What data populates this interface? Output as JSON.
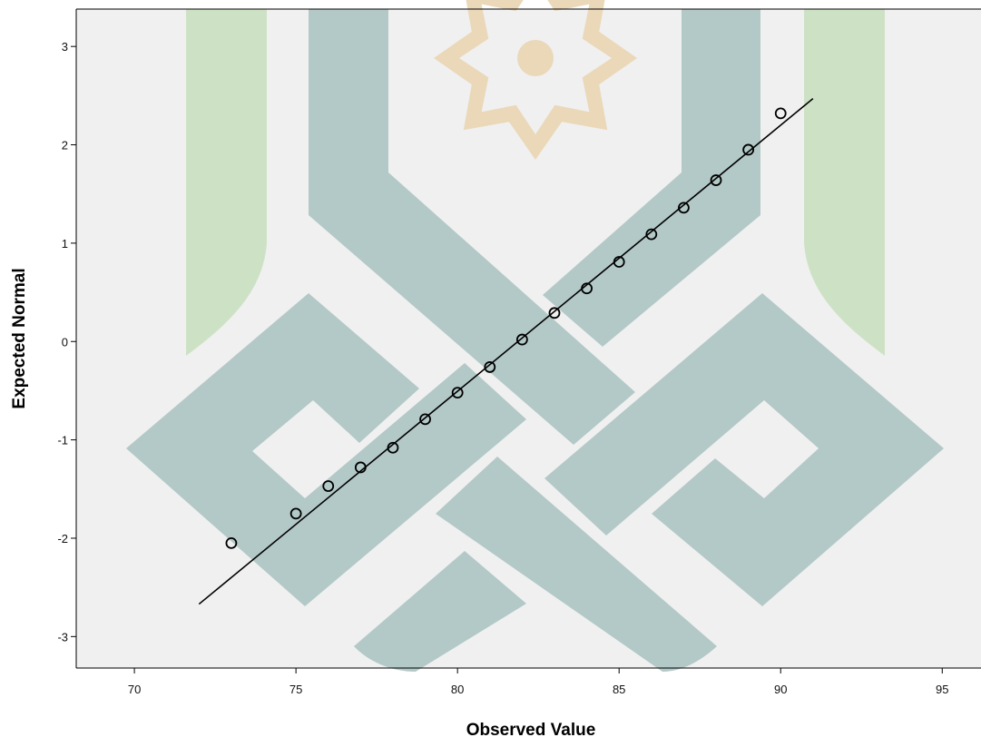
{
  "chart_data": {
    "type": "scatter",
    "title": "",
    "xlabel": "Observed Value",
    "ylabel": "Expected Normal",
    "xlim": [
      68.2,
      96.2
    ],
    "ylim": [
      -3.32,
      3.38
    ],
    "xticks": [
      70,
      75,
      80,
      85,
      90,
      95
    ],
    "yticks": [
      -3,
      -2,
      -1,
      0,
      1,
      2,
      3
    ],
    "xtick_labels": [
      "70",
      "75",
      "80",
      "85",
      "90",
      "95"
    ],
    "ytick_labels": [
      "-3",
      "-2",
      "-1",
      "0",
      "1",
      "2",
      "3"
    ],
    "grid": false,
    "legend": "none",
    "series": [
      {
        "x": [
          73,
          75,
          76,
          77,
          78,
          79,
          80,
          81,
          82,
          83,
          84,
          85,
          86,
          87,
          88,
          89,
          90
        ],
        "y": [
          -2.05,
          -1.75,
          -1.47,
          -1.28,
          -1.08,
          -0.79,
          -0.52,
          -0.26,
          0.02,
          0.29,
          0.54,
          0.81,
          1.09,
          1.36,
          1.64,
          1.95,
          2.32
        ],
        "marker": "open-circle"
      }
    ],
    "reference_line": {
      "x": [
        72,
        91
      ],
      "y": [
        -2.67,
        2.47
      ]
    },
    "colors": {
      "plot_background": "#f0f0f0",
      "marker": "#000000",
      "line": "#000000",
      "watermark_teal": "#b3c9c7",
      "watermark_green": "#cde2c5",
      "watermark_gold": "#ead8b9"
    }
  }
}
